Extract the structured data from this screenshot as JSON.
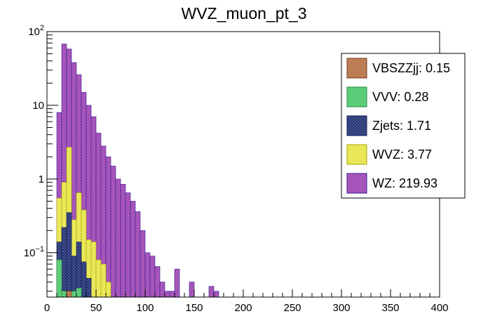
{
  "chart_data": {
    "type": "bar",
    "title": "WVZ_muon_pt_3",
    "xlabel": "",
    "ylabel": "",
    "y_scale": "log",
    "stacked": true,
    "xlim": [
      0,
      400
    ],
    "ylim": [
      0.025,
      100
    ],
    "bin_width": 5,
    "bin_start": 0,
    "x_ticks": [
      0,
      50,
      100,
      150,
      200,
      250,
      300,
      350,
      400
    ],
    "x_tick_labels": [
      "0",
      "50",
      "100",
      "150",
      "200",
      "250",
      "300",
      "350",
      "400"
    ],
    "y_ticks": [
      0.1,
      1,
      10,
      100
    ],
    "y_tick_labels": [
      "10^-1",
      "1",
      "10",
      "10^2"
    ],
    "legend_placement": "top-right",
    "series": [
      {
        "name": "WZ",
        "legend_label": "WZ: 219.93",
        "color": "#b866c4",
        "hatch": "#7a2fa0",
        "edge": "#3b1a9a",
        "stack_totals": [
          0,
          0,
          8,
          68,
          58,
          38,
          26,
          15,
          10,
          7,
          4.2,
          2.8,
          2.0,
          1.5,
          1.0,
          0.85,
          0.65,
          0.5,
          0.36,
          0.2,
          0.1,
          0.09,
          0.065,
          0.04,
          0.03,
          0.03,
          0.06,
          0,
          0,
          0.04,
          0,
          0,
          0,
          0.035,
          0.03
        ]
      },
      {
        "name": "WVZ",
        "legend_label": "WVZ: 3.77",
        "color": "#f2f06a",
        "hatch": "#d6d430",
        "edge": "#a8a600",
        "stack_totals": [
          0,
          0,
          0.55,
          0.9,
          2.7,
          0.28,
          0.65,
          0.38,
          0.15,
          0.14,
          0.08,
          0.07,
          0.04
        ]
      },
      {
        "name": "Zjets",
        "legend_label": "Zjets: 1.71",
        "color": "#1e2e6a",
        "hatch": "#6a78b4",
        "edge": "#101a55",
        "stack_totals": [
          0,
          0,
          0.14,
          0.22,
          0.35,
          0.09,
          0.14,
          0.075,
          0.045
        ]
      },
      {
        "name": "VVV",
        "legend_label": "VVV: 0.28",
        "color": "#6ede8a",
        "hatch": "#2ea84e",
        "edge": "#2a8a40",
        "stack_totals": [
          0,
          0,
          0.08,
          0.03,
          0.03,
          0.03,
          0.033
        ]
      },
      {
        "name": "VBSZZjj",
        "legend_label": "VBSZZjj: 0.15",
        "color": "#c98a60",
        "hatch": "#a05c38",
        "edge": "#7a3a1e",
        "stack_totals": [
          0,
          0,
          0,
          0,
          0.03
        ]
      }
    ]
  }
}
